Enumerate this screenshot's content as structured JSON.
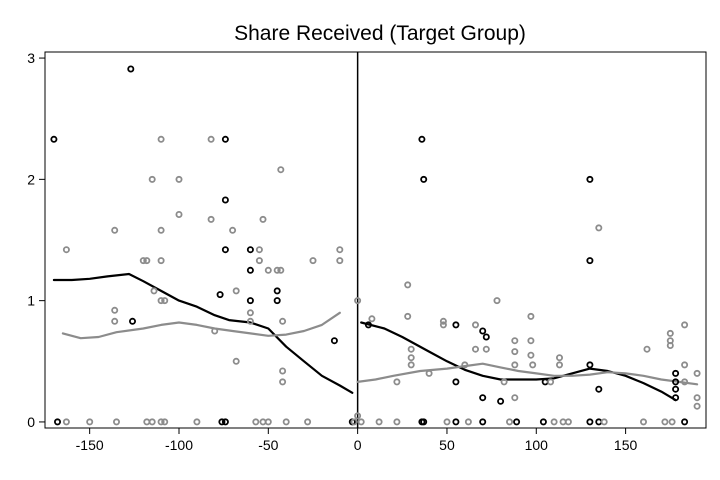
{
  "chart_data": {
    "type": "scatter",
    "title": "Share Received (Target Group)",
    "xlabel": "",
    "ylabel": "",
    "xlim": [
      -175,
      195
    ],
    "ylim": [
      -0.05,
      3.05
    ],
    "xticks": [
      -150,
      -100,
      -50,
      0,
      50,
      100,
      150
    ],
    "yticks": [
      0,
      1,
      2,
      3
    ],
    "grid": false,
    "legend": "none",
    "cutoff_line_x": 0,
    "colors": {
      "black": "#000000",
      "gray": "#8c8c8c"
    },
    "series": [
      {
        "color": "#000000",
        "points": [
          [
            -170,
            2.33
          ],
          [
            -127,
            2.91
          ],
          [
            -168,
            0
          ],
          [
            -126,
            0.83
          ],
          [
            -74,
            2.33
          ],
          [
            -74,
            1.83
          ],
          [
            -74,
            1.42
          ],
          [
            -77,
            1.05
          ],
          [
            -60,
            1.42
          ],
          [
            -60,
            1.25
          ],
          [
            -60,
            1.0
          ],
          [
            -45,
            1.08
          ],
          [
            -45,
            1.0
          ],
          [
            -13,
            0.67
          ],
          [
            -76,
            0
          ],
          [
            -74,
            0
          ],
          [
            -3,
            0
          ],
          [
            36,
            2.33
          ],
          [
            37,
            2.0
          ],
          [
            130,
            2.0
          ],
          [
            130,
            1.33
          ],
          [
            6,
            0.8
          ],
          [
            55,
            0.8
          ],
          [
            70,
            0.75
          ],
          [
            72,
            0.7
          ],
          [
            55,
            0.33
          ],
          [
            70,
            0.2
          ],
          [
            80,
            0.17
          ],
          [
            105,
            0.33
          ],
          [
            130,
            0.47
          ],
          [
            135,
            0.27
          ],
          [
            178,
            0.4
          ],
          [
            178,
            0.33
          ],
          [
            178,
            0.27
          ],
          [
            178,
            0.2
          ],
          [
            36,
            0
          ],
          [
            37,
            0
          ],
          [
            55,
            0
          ],
          [
            70,
            0
          ],
          [
            89,
            0
          ],
          [
            104,
            0
          ],
          [
            130,
            0
          ],
          [
            135,
            0
          ],
          [
            183,
            0
          ]
        ]
      },
      {
        "color": "#8c8c8c",
        "points": [
          [
            -163,
            1.42
          ],
          [
            -136,
            1.58
          ],
          [
            -136,
            0.92
          ],
          [
            -136,
            0.83
          ],
          [
            -120,
            1.33
          ],
          [
            -118,
            1.33
          ],
          [
            -115,
            2.0
          ],
          [
            -114,
            1.08
          ],
          [
            -110,
            2.33
          ],
          [
            -110,
            1.58
          ],
          [
            -110,
            1.33
          ],
          [
            -108,
            1.0
          ],
          [
            -110,
            1.0
          ],
          [
            -100,
            2.0
          ],
          [
            -100,
            1.71
          ],
          [
            -82,
            2.33
          ],
          [
            -82,
            1.67
          ],
          [
            -70,
            1.58
          ],
          [
            -68,
            1.08
          ],
          [
            -68,
            0.5
          ],
          [
            -80,
            0.75
          ],
          [
            -60,
            0.9
          ],
          [
            -60,
            0.83
          ],
          [
            -55,
            1.42
          ],
          [
            -55,
            1.33
          ],
          [
            -53,
            1.67
          ],
          [
            -50,
            1.25
          ],
          [
            -45,
            1.25
          ],
          [
            -43,
            1.25
          ],
          [
            -43,
            2.08
          ],
          [
            -42,
            0.83
          ],
          [
            -42,
            0.42
          ],
          [
            -42,
            0.33
          ],
          [
            -25,
            1.33
          ],
          [
            -10,
            1.42
          ],
          [
            -10,
            1.33
          ],
          [
            -163,
            0
          ],
          [
            -150,
            0
          ],
          [
            -135,
            0
          ],
          [
            -118,
            0
          ],
          [
            -115,
            0
          ],
          [
            -110,
            0
          ],
          [
            -108,
            0
          ],
          [
            -90,
            0
          ],
          [
            -57,
            0
          ],
          [
            -53,
            0
          ],
          [
            -50,
            0
          ],
          [
            -40,
            0
          ],
          [
            -28,
            0
          ],
          [
            0,
            1.0
          ],
          [
            0,
            0.05
          ],
          [
            -2,
            0
          ],
          [
            8,
            0.85
          ],
          [
            22,
            0.33
          ],
          [
            28,
            1.13
          ],
          [
            28,
            0.87
          ],
          [
            30,
            0.6
          ],
          [
            30,
            0.53
          ],
          [
            30,
            0.47
          ],
          [
            40,
            0.4
          ],
          [
            48,
            0.83
          ],
          [
            48,
            0.8
          ],
          [
            60,
            0.47
          ],
          [
            66,
            0.6
          ],
          [
            66,
            0.8
          ],
          [
            72,
            0.6
          ],
          [
            78,
            1.0
          ],
          [
            82,
            0.33
          ],
          [
            88,
            0.67
          ],
          [
            88,
            0.58
          ],
          [
            88,
            0.47
          ],
          [
            88,
            0.2
          ],
          [
            97,
            0.87
          ],
          [
            97,
            0.67
          ],
          [
            97,
            0.55
          ],
          [
            98,
            0.47
          ],
          [
            108,
            0.33
          ],
          [
            113,
            0.53
          ],
          [
            113,
            0.47
          ],
          [
            135,
            1.6
          ],
          [
            162,
            0.6
          ],
          [
            175,
            0.73
          ],
          [
            175,
            0.67
          ],
          [
            175,
            0.63
          ],
          [
            183,
            0.8
          ],
          [
            183,
            0.47
          ],
          [
            183,
            0.33
          ],
          [
            190,
            0.4
          ],
          [
            190,
            0.2
          ],
          [
            190,
            0.13
          ],
          [
            2,
            0
          ],
          [
            12,
            0
          ],
          [
            22,
            0
          ],
          [
            50,
            0
          ],
          [
            62,
            0
          ],
          [
            85,
            0
          ],
          [
            110,
            0
          ],
          [
            115,
            0
          ],
          [
            118,
            0
          ],
          [
            138,
            0
          ],
          [
            160,
            0
          ],
          [
            172,
            0
          ],
          [
            176,
            0
          ]
        ]
      }
    ],
    "fit_lines": [
      {
        "color": "#000000",
        "points": [
          [
            -170,
            1.17
          ],
          [
            -160,
            1.17
          ],
          [
            -150,
            1.18
          ],
          [
            -140,
            1.2
          ],
          [
            -128,
            1.22
          ],
          [
            -120,
            1.16
          ],
          [
            -110,
            1.08
          ],
          [
            -100,
            1.0
          ],
          [
            -90,
            0.95
          ],
          [
            -80,
            0.88
          ],
          [
            -72,
            0.84
          ],
          [
            -60,
            0.82
          ],
          [
            -50,
            0.77
          ],
          [
            -40,
            0.62
          ],
          [
            -30,
            0.5
          ],
          [
            -20,
            0.38
          ],
          [
            -10,
            0.3
          ],
          [
            -3,
            0.24
          ]
        ]
      },
      {
        "color": "#8c8c8c",
        "points": [
          [
            -165,
            0.73
          ],
          [
            -155,
            0.69
          ],
          [
            -145,
            0.7
          ],
          [
            -135,
            0.74
          ],
          [
            -120,
            0.77
          ],
          [
            -110,
            0.8
          ],
          [
            -100,
            0.82
          ],
          [
            -90,
            0.8
          ],
          [
            -80,
            0.77
          ],
          [
            -70,
            0.75
          ],
          [
            -60,
            0.73
          ],
          [
            -50,
            0.71
          ],
          [
            -40,
            0.72
          ],
          [
            -30,
            0.75
          ],
          [
            -20,
            0.8
          ],
          [
            -10,
            0.9
          ]
        ]
      },
      {
        "color": "#000000",
        "points": [
          [
            2,
            0.82
          ],
          [
            15,
            0.77
          ],
          [
            25,
            0.7
          ],
          [
            40,
            0.58
          ],
          [
            50,
            0.5
          ],
          [
            60,
            0.43
          ],
          [
            70,
            0.38
          ],
          [
            80,
            0.35
          ],
          [
            90,
            0.35
          ],
          [
            100,
            0.35
          ],
          [
            110,
            0.36
          ],
          [
            120,
            0.4
          ],
          [
            130,
            0.44
          ],
          [
            140,
            0.42
          ],
          [
            150,
            0.38
          ],
          [
            160,
            0.32
          ],
          [
            170,
            0.25
          ],
          [
            178,
            0.18
          ]
        ]
      },
      {
        "color": "#8c8c8c",
        "points": [
          [
            0,
            0.33
          ],
          [
            10,
            0.35
          ],
          [
            20,
            0.38
          ],
          [
            35,
            0.42
          ],
          [
            50,
            0.44
          ],
          [
            60,
            0.46
          ],
          [
            70,
            0.48
          ],
          [
            80,
            0.45
          ],
          [
            90,
            0.42
          ],
          [
            100,
            0.4
          ],
          [
            110,
            0.38
          ],
          [
            120,
            0.38
          ],
          [
            130,
            0.39
          ],
          [
            140,
            0.41
          ],
          [
            150,
            0.4
          ],
          [
            160,
            0.38
          ],
          [
            170,
            0.35
          ],
          [
            180,
            0.33
          ],
          [
            190,
            0.31
          ]
        ]
      }
    ]
  }
}
